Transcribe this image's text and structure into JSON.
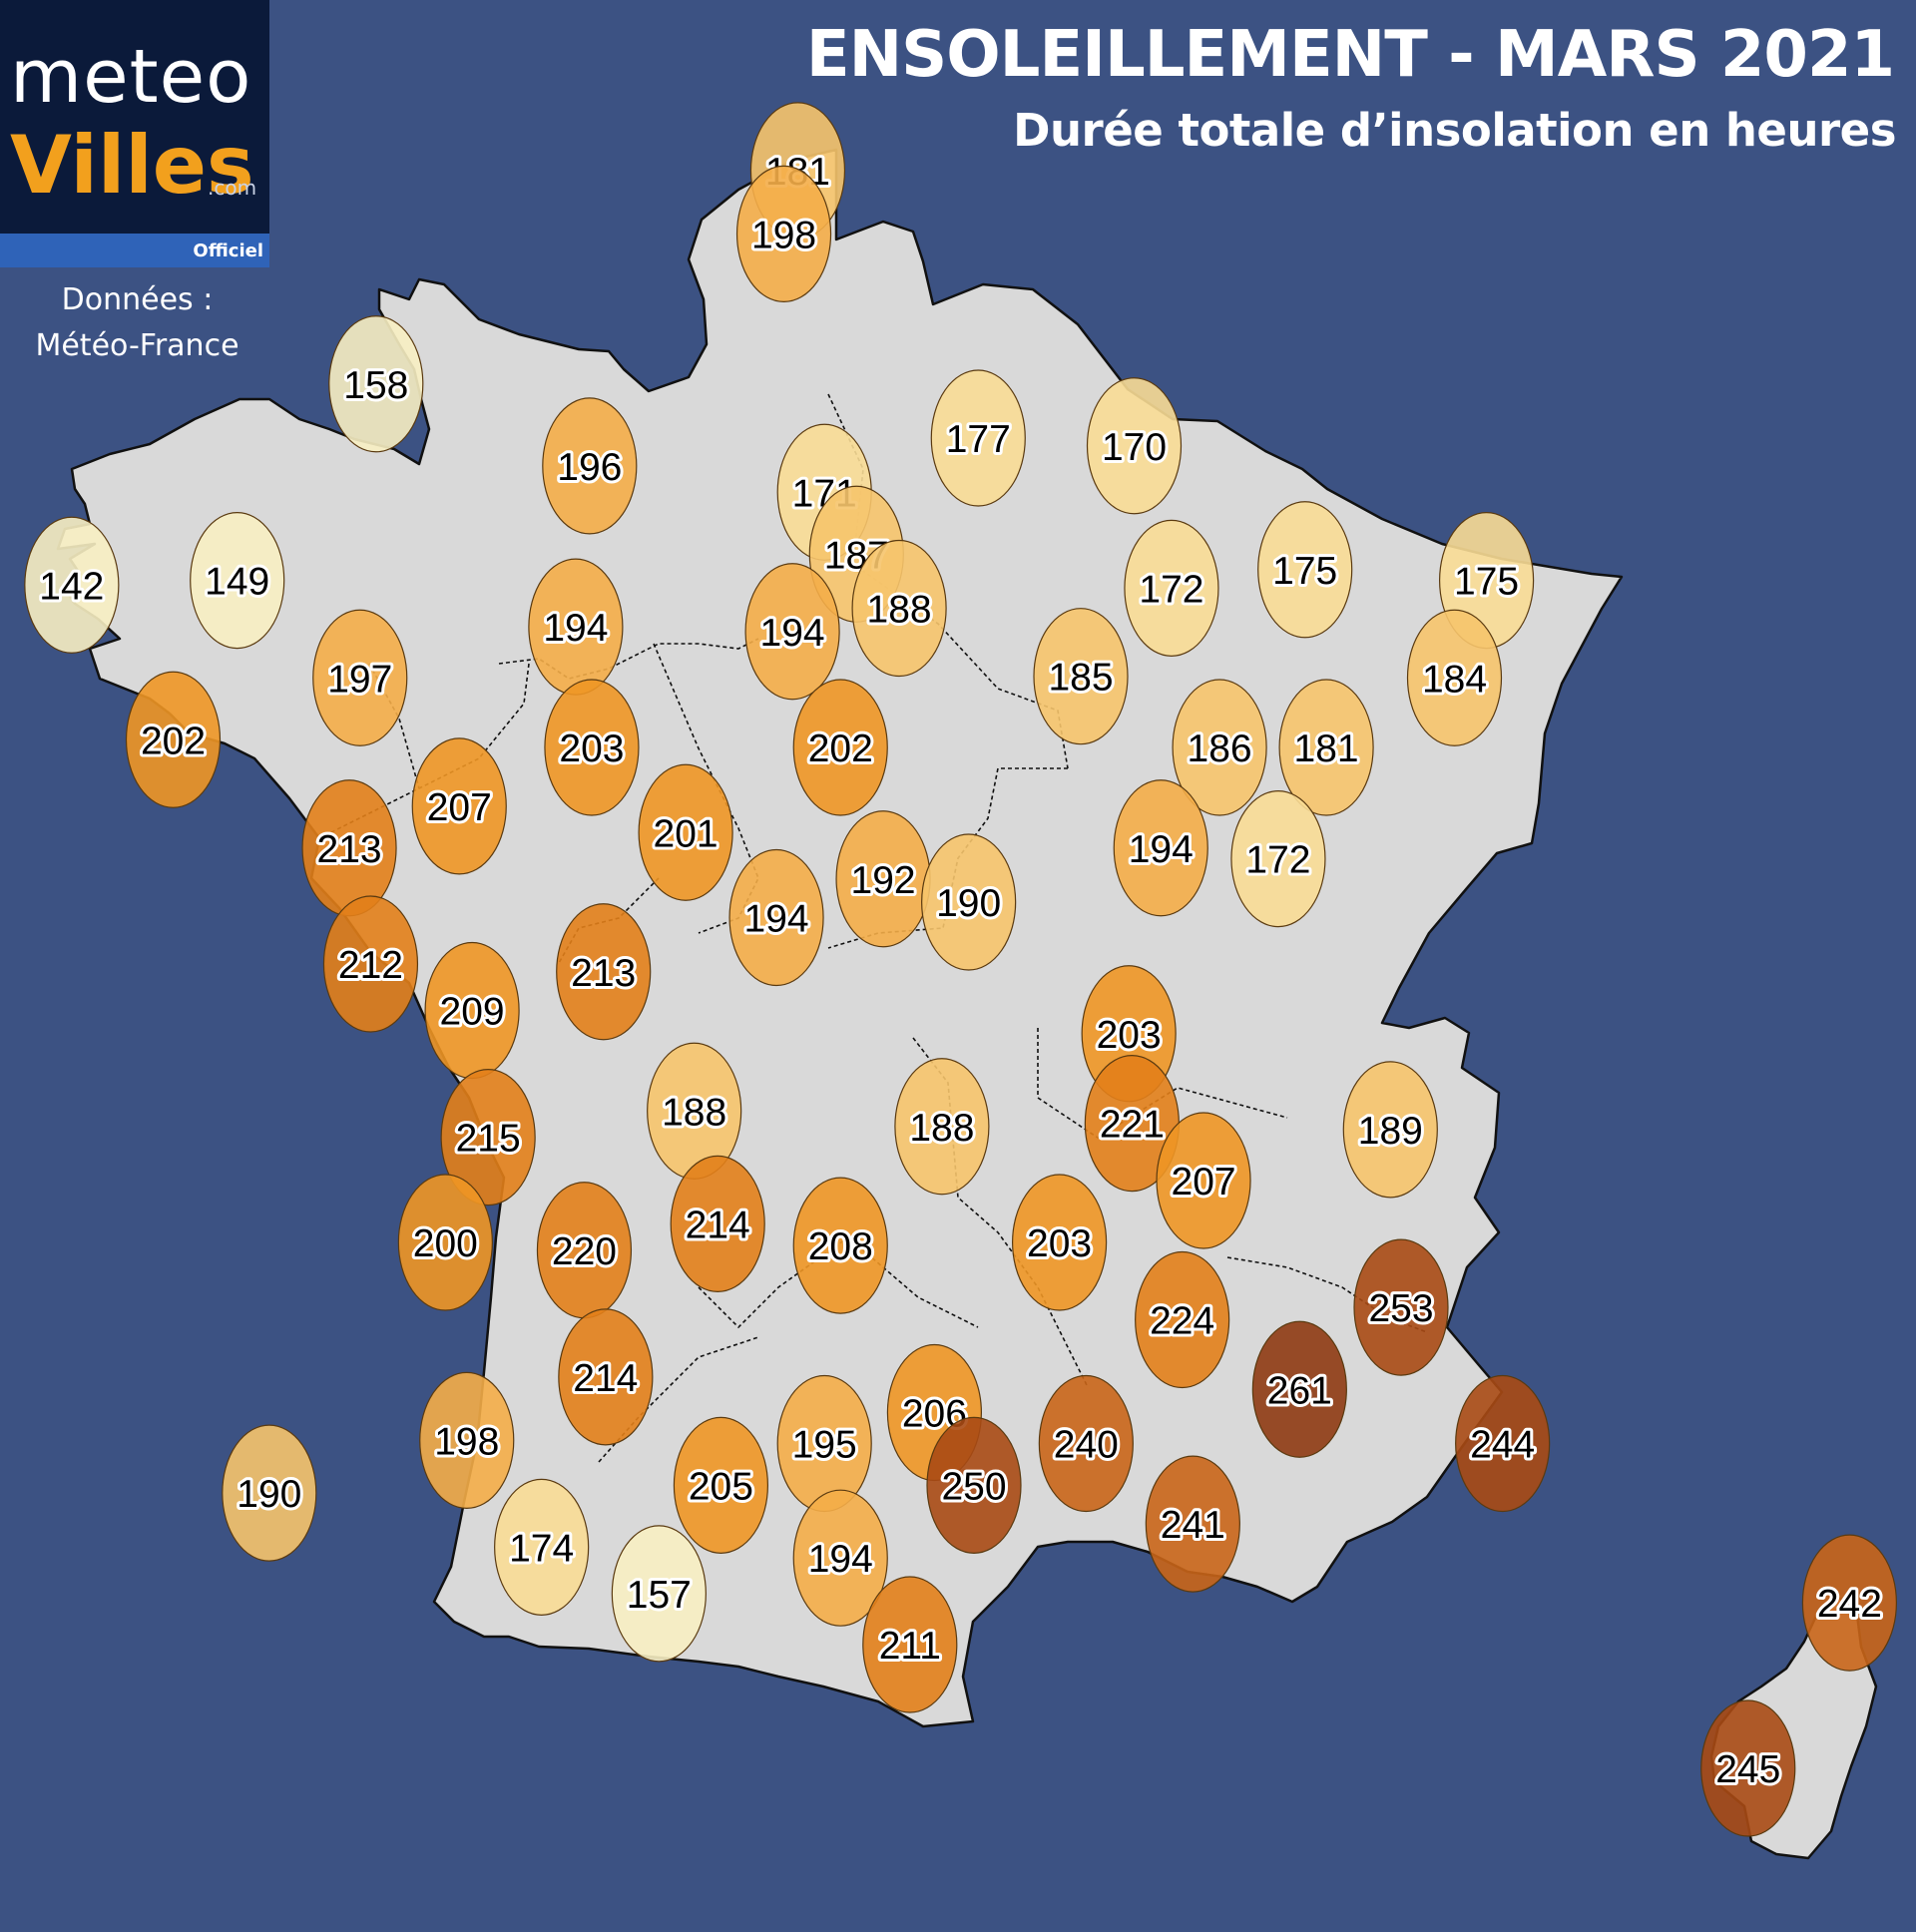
{
  "header": {
    "title": "ENSOLEILLEMENT - MARS 2021",
    "subtitle": "Durée totale d’insolation en heures"
  },
  "logo": {
    "line1": "meteo",
    "line2": "Villes",
    "suffix": ".com",
    "badge": "Officiel"
  },
  "source": {
    "line1": "Données :",
    "line2": "Météo-France"
  },
  "colors": {
    "background": "#3c5283",
    "land": "#d9d9d9",
    "borders": "#111111",
    "scale": [
      "#f7eec2",
      "#f8dc95",
      "#f6c46c",
      "#f4ad48",
      "#ee9625",
      "#e2801a",
      "#c96518",
      "#a84a14",
      "#8e3a12"
    ]
  },
  "stations": [
    {
      "value": 181,
      "lon": 2.35,
      "lat": 51.03
    },
    {
      "value": 198,
      "lon": 2.22,
      "lat": 50.62
    },
    {
      "value": 177,
      "lon": 4.04,
      "lat": 49.3
    },
    {
      "value": 170,
      "lon": 5.5,
      "lat": 49.25
    },
    {
      "value": 158,
      "lon": -1.6,
      "lat": 49.65
    },
    {
      "value": 196,
      "lon": 0.4,
      "lat": 49.12
    },
    {
      "value": 171,
      "lon": 2.6,
      "lat": 48.95
    },
    {
      "value": 142,
      "lon": -4.45,
      "lat": 48.35
    },
    {
      "value": 149,
      "lon": -2.9,
      "lat": 48.38
    },
    {
      "value": 187,
      "lon": 2.9,
      "lat": 48.55
    },
    {
      "value": 188,
      "lon": 3.3,
      "lat": 48.2
    },
    {
      "value": 172,
      "lon": 5.85,
      "lat": 48.33
    },
    {
      "value": 175,
      "lon": 7.1,
      "lat": 48.45
    },
    {
      "value": 175,
      "lon": 8.8,
      "lat": 48.38
    },
    {
      "value": 194,
      "lon": 0.27,
      "lat": 48.08
    },
    {
      "value": 194,
      "lon": 2.3,
      "lat": 48.05
    },
    {
      "value": 197,
      "lon": -1.75,
      "lat": 47.75
    },
    {
      "value": 185,
      "lon": 5.0,
      "lat": 47.76
    },
    {
      "value": 184,
      "lon": 8.5,
      "lat": 47.75
    },
    {
      "value": 202,
      "lon": -3.5,
      "lat": 47.35
    },
    {
      "value": 203,
      "lon": 0.42,
      "lat": 47.3
    },
    {
      "value": 202,
      "lon": 2.75,
      "lat": 47.3
    },
    {
      "value": 186,
      "lon": 6.3,
      "lat": 47.3
    },
    {
      "value": 181,
      "lon": 7.3,
      "lat": 47.3
    },
    {
      "value": 207,
      "lon": -0.82,
      "lat": 46.92
    },
    {
      "value": 201,
      "lon": 1.3,
      "lat": 46.75
    },
    {
      "value": 213,
      "lon": -1.85,
      "lat": 46.65
    },
    {
      "value": 194,
      "lon": 5.75,
      "lat": 46.65
    },
    {
      "value": 172,
      "lon": 6.85,
      "lat": 46.58
    },
    {
      "value": 192,
      "lon": 3.15,
      "lat": 46.45
    },
    {
      "value": 190,
      "lon": 3.95,
      "lat": 46.3
    },
    {
      "value": 194,
      "lon": 2.15,
      "lat": 46.2
    },
    {
      "value": 212,
      "lon": -1.65,
      "lat": 45.9
    },
    {
      "value": 209,
      "lon": -0.7,
      "lat": 45.6
    },
    {
      "value": 213,
      "lon": 0.53,
      "lat": 45.85
    },
    {
      "value": 203,
      "lon": 5.45,
      "lat": 45.45
    },
    {
      "value": 188,
      "lon": 1.38,
      "lat": 44.95
    },
    {
      "value": 188,
      "lon": 3.7,
      "lat": 44.85
    },
    {
      "value": 221,
      "lon": 5.48,
      "lat": 44.87
    },
    {
      "value": 189,
      "lon": 7.9,
      "lat": 44.83
    },
    {
      "value": 215,
      "lon": -0.55,
      "lat": 44.78
    },
    {
      "value": 207,
      "lon": 6.15,
      "lat": 44.5
    },
    {
      "value": 214,
      "lon": 1.6,
      "lat": 44.22
    },
    {
      "value": 200,
      "lon": -0.95,
      "lat": 44.1
    },
    {
      "value": 220,
      "lon": 0.35,
      "lat": 44.05
    },
    {
      "value": 208,
      "lon": 2.75,
      "lat": 44.08
    },
    {
      "value": 203,
      "lon": 4.8,
      "lat": 44.1
    },
    {
      "value": 253,
      "lon": 8.0,
      "lat": 43.68
    },
    {
      "value": 224,
      "lon": 5.95,
      "lat": 43.6
    },
    {
      "value": 214,
      "lon": 0.55,
      "lat": 43.23
    },
    {
      "value": 261,
      "lon": 7.05,
      "lat": 43.15
    },
    {
      "value": 206,
      "lon": 3.63,
      "lat": 43.0
    },
    {
      "value": 240,
      "lon": 5.05,
      "lat": 42.8
    },
    {
      "value": 195,
      "lon": 2.6,
      "lat": 42.8
    },
    {
      "value": 198,
      "lon": -0.75,
      "lat": 42.82
    },
    {
      "value": 244,
      "lon": 8.95,
      "lat": 42.8
    },
    {
      "value": 250,
      "lon": 4.0,
      "lat": 42.53
    },
    {
      "value": 205,
      "lon": 1.63,
      "lat": 42.53
    },
    {
      "value": 190,
      "lon": -2.6,
      "lat": 42.48
    },
    {
      "value": 241,
      "lon": 6.05,
      "lat": 42.28
    },
    {
      "value": 174,
      "lon": -0.05,
      "lat": 42.13
    },
    {
      "value": 194,
      "lon": 2.75,
      "lat": 42.06
    },
    {
      "value": 157,
      "lon": 1.05,
      "lat": 41.83
    },
    {
      "value": 211,
      "lon": 3.4,
      "lat": 41.5
    },
    {
      "value": 242,
      "lon": 12.2,
      "lat": 41.77
    },
    {
      "value": 245,
      "lon": 11.25,
      "lat": 40.7
    }
  ]
}
